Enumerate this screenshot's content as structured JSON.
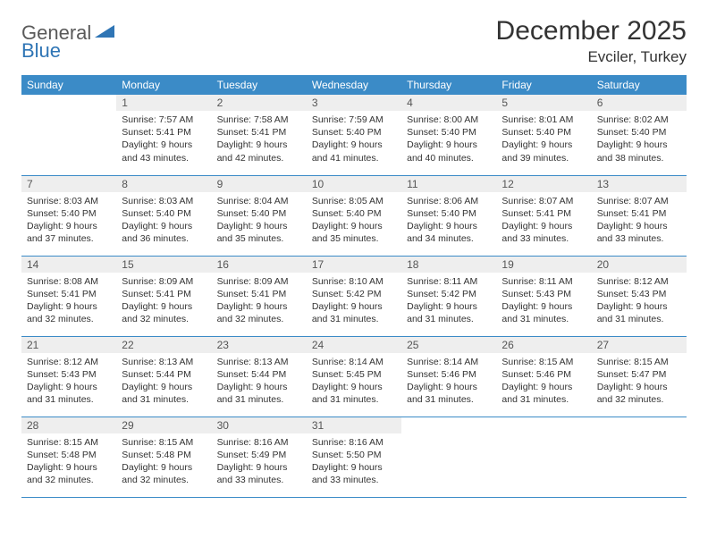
{
  "logo": {
    "part1": "General",
    "part2": "Blue"
  },
  "title": "December 2025",
  "location": "Evciler, Turkey",
  "colors": {
    "header_bg": "#3b8bc7",
    "header_text": "#ffffff",
    "daynum_bg": "#eeeeee",
    "row_border": "#3b8bc7",
    "logo_blue": "#2f75b5",
    "logo_gray": "#5a5a5a"
  },
  "weekdays": [
    "Sunday",
    "Monday",
    "Tuesday",
    "Wednesday",
    "Thursday",
    "Friday",
    "Saturday"
  ],
  "weeks": [
    [
      {
        "n": "",
        "lines": []
      },
      {
        "n": "1",
        "lines": [
          "Sunrise: 7:57 AM",
          "Sunset: 5:41 PM",
          "Daylight: 9 hours",
          "and 43 minutes."
        ]
      },
      {
        "n": "2",
        "lines": [
          "Sunrise: 7:58 AM",
          "Sunset: 5:41 PM",
          "Daylight: 9 hours",
          "and 42 minutes."
        ]
      },
      {
        "n": "3",
        "lines": [
          "Sunrise: 7:59 AM",
          "Sunset: 5:40 PM",
          "Daylight: 9 hours",
          "and 41 minutes."
        ]
      },
      {
        "n": "4",
        "lines": [
          "Sunrise: 8:00 AM",
          "Sunset: 5:40 PM",
          "Daylight: 9 hours",
          "and 40 minutes."
        ]
      },
      {
        "n": "5",
        "lines": [
          "Sunrise: 8:01 AM",
          "Sunset: 5:40 PM",
          "Daylight: 9 hours",
          "and 39 minutes."
        ]
      },
      {
        "n": "6",
        "lines": [
          "Sunrise: 8:02 AM",
          "Sunset: 5:40 PM",
          "Daylight: 9 hours",
          "and 38 minutes."
        ]
      }
    ],
    [
      {
        "n": "7",
        "lines": [
          "Sunrise: 8:03 AM",
          "Sunset: 5:40 PM",
          "Daylight: 9 hours",
          "and 37 minutes."
        ]
      },
      {
        "n": "8",
        "lines": [
          "Sunrise: 8:03 AM",
          "Sunset: 5:40 PM",
          "Daylight: 9 hours",
          "and 36 minutes."
        ]
      },
      {
        "n": "9",
        "lines": [
          "Sunrise: 8:04 AM",
          "Sunset: 5:40 PM",
          "Daylight: 9 hours",
          "and 35 minutes."
        ]
      },
      {
        "n": "10",
        "lines": [
          "Sunrise: 8:05 AM",
          "Sunset: 5:40 PM",
          "Daylight: 9 hours",
          "and 35 minutes."
        ]
      },
      {
        "n": "11",
        "lines": [
          "Sunrise: 8:06 AM",
          "Sunset: 5:40 PM",
          "Daylight: 9 hours",
          "and 34 minutes."
        ]
      },
      {
        "n": "12",
        "lines": [
          "Sunrise: 8:07 AM",
          "Sunset: 5:41 PM",
          "Daylight: 9 hours",
          "and 33 minutes."
        ]
      },
      {
        "n": "13",
        "lines": [
          "Sunrise: 8:07 AM",
          "Sunset: 5:41 PM",
          "Daylight: 9 hours",
          "and 33 minutes."
        ]
      }
    ],
    [
      {
        "n": "14",
        "lines": [
          "Sunrise: 8:08 AM",
          "Sunset: 5:41 PM",
          "Daylight: 9 hours",
          "and 32 minutes."
        ]
      },
      {
        "n": "15",
        "lines": [
          "Sunrise: 8:09 AM",
          "Sunset: 5:41 PM",
          "Daylight: 9 hours",
          "and 32 minutes."
        ]
      },
      {
        "n": "16",
        "lines": [
          "Sunrise: 8:09 AM",
          "Sunset: 5:41 PM",
          "Daylight: 9 hours",
          "and 32 minutes."
        ]
      },
      {
        "n": "17",
        "lines": [
          "Sunrise: 8:10 AM",
          "Sunset: 5:42 PM",
          "Daylight: 9 hours",
          "and 31 minutes."
        ]
      },
      {
        "n": "18",
        "lines": [
          "Sunrise: 8:11 AM",
          "Sunset: 5:42 PM",
          "Daylight: 9 hours",
          "and 31 minutes."
        ]
      },
      {
        "n": "19",
        "lines": [
          "Sunrise: 8:11 AM",
          "Sunset: 5:43 PM",
          "Daylight: 9 hours",
          "and 31 minutes."
        ]
      },
      {
        "n": "20",
        "lines": [
          "Sunrise: 8:12 AM",
          "Sunset: 5:43 PM",
          "Daylight: 9 hours",
          "and 31 minutes."
        ]
      }
    ],
    [
      {
        "n": "21",
        "lines": [
          "Sunrise: 8:12 AM",
          "Sunset: 5:43 PM",
          "Daylight: 9 hours",
          "and 31 minutes."
        ]
      },
      {
        "n": "22",
        "lines": [
          "Sunrise: 8:13 AM",
          "Sunset: 5:44 PM",
          "Daylight: 9 hours",
          "and 31 minutes."
        ]
      },
      {
        "n": "23",
        "lines": [
          "Sunrise: 8:13 AM",
          "Sunset: 5:44 PM",
          "Daylight: 9 hours",
          "and 31 minutes."
        ]
      },
      {
        "n": "24",
        "lines": [
          "Sunrise: 8:14 AM",
          "Sunset: 5:45 PM",
          "Daylight: 9 hours",
          "and 31 minutes."
        ]
      },
      {
        "n": "25",
        "lines": [
          "Sunrise: 8:14 AM",
          "Sunset: 5:46 PM",
          "Daylight: 9 hours",
          "and 31 minutes."
        ]
      },
      {
        "n": "26",
        "lines": [
          "Sunrise: 8:15 AM",
          "Sunset: 5:46 PM",
          "Daylight: 9 hours",
          "and 31 minutes."
        ]
      },
      {
        "n": "27",
        "lines": [
          "Sunrise: 8:15 AM",
          "Sunset: 5:47 PM",
          "Daylight: 9 hours",
          "and 32 minutes."
        ]
      }
    ],
    [
      {
        "n": "28",
        "lines": [
          "Sunrise: 8:15 AM",
          "Sunset: 5:48 PM",
          "Daylight: 9 hours",
          "and 32 minutes."
        ]
      },
      {
        "n": "29",
        "lines": [
          "Sunrise: 8:15 AM",
          "Sunset: 5:48 PM",
          "Daylight: 9 hours",
          "and 32 minutes."
        ]
      },
      {
        "n": "30",
        "lines": [
          "Sunrise: 8:16 AM",
          "Sunset: 5:49 PM",
          "Daylight: 9 hours",
          "and 33 minutes."
        ]
      },
      {
        "n": "31",
        "lines": [
          "Sunrise: 8:16 AM",
          "Sunset: 5:50 PM",
          "Daylight: 9 hours",
          "and 33 minutes."
        ]
      },
      {
        "n": "",
        "lines": []
      },
      {
        "n": "",
        "lines": []
      },
      {
        "n": "",
        "lines": []
      }
    ]
  ]
}
